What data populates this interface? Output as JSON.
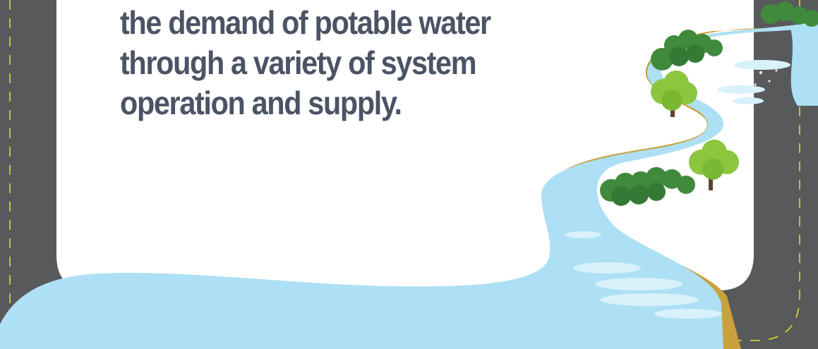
{
  "headline": {
    "lines": [
      "the demand of potable water",
      "through a variety of system",
      "operation and supply."
    ]
  },
  "colors": {
    "road": "#58595b",
    "road_dash": "#e6e32a",
    "panel": "#ffffff",
    "text": "#4b5365",
    "river": "#ade0f4",
    "river_highlight": "#d8f1fb",
    "riverbank": "#c9a13e",
    "tree_dark": "#3f8a3c",
    "tree_light": "#8cc63f",
    "trunk": "#5a4330"
  },
  "illustration": {
    "elements": [
      "road",
      "dashed-lane-line",
      "river",
      "riverbank",
      "trees"
    ]
  }
}
